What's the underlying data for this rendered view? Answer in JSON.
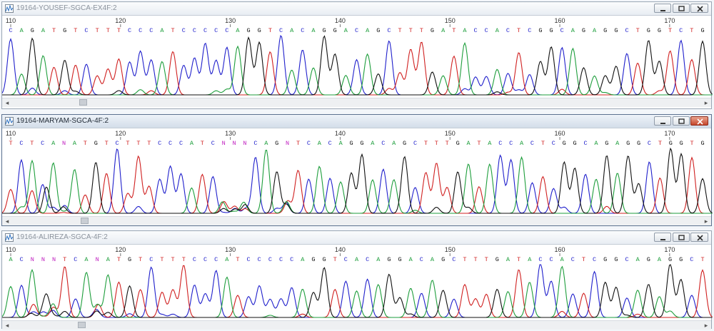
{
  "colors": {
    "A": "#1e9e3c",
    "C": "#2020cc",
    "G": "#111111",
    "T": "#d02020",
    "N": "#c020c0"
  },
  "windows": [
    {
      "title": "19164-YOUSEF-SGCA-EX4F:2",
      "active": false,
      "start": 110,
      "end": 173,
      "first_tick_pos": 109.5,
      "ticks": [
        110,
        120,
        130,
        140,
        150,
        160,
        170
      ],
      "sequence": "CAGATGTCTTTCCCATCCCCCAGGTCACAGGACAGCTTTGATACCACTCGGCAGAGGCTGGTCTG"
    },
    {
      "title": "19164-MARYAM-SGCA-4F:2",
      "active": true,
      "start": 110,
      "end": 173,
      "ticks": [
        110,
        120,
        130,
        140,
        150,
        160,
        170
      ],
      "sequence": "TCTCANATGTCTTTCCCATCNNNCAGNTCACAGGACAGCTTTGATACCACTCGGCAGAGGCTGGTG"
    },
    {
      "title": "19164-ALIREZA-SGCA-4F:2",
      "active": false,
      "start": 110,
      "end": 173,
      "ticks": [
        110,
        120,
        130,
        140,
        150,
        160,
        170
      ],
      "sequence": "ACNNNTCANATGTCTTTCCCATCCCCCAGGTCACAGGACAGCTTTGATACCACTCGGCAGAGGCT"
    }
  ],
  "icons": {
    "window": "chromatogram-icon",
    "min": "minimize-icon",
    "max": "maximize-icon",
    "close": "close-icon",
    "left": "scroll-left-icon",
    "right": "scroll-right-icon"
  },
  "scroll": {
    "left": "◂",
    "right": "▸"
  }
}
